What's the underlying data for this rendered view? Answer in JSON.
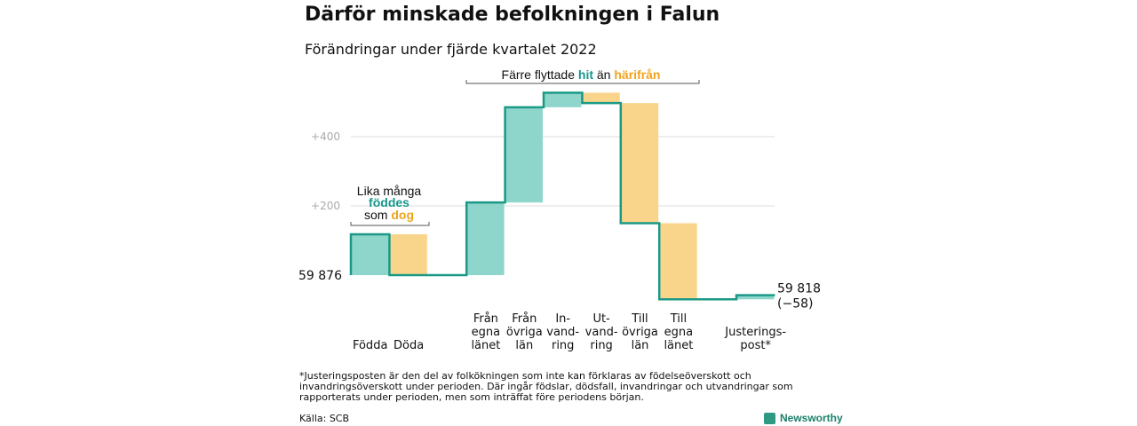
{
  "title": "Därför minskade befolkningen i Falun",
  "subtitle": "Förändringar under fjärde kvartalet 2022",
  "colors": {
    "positive": "#8ed5cb",
    "negative": "#f9d48b",
    "line": "#1a9a86",
    "hit": "#17968a",
    "harifran": "#f0a41d",
    "grid": "#dddddd",
    "tick": "#aaaaaa"
  },
  "chart_data": {
    "type": "waterfall",
    "start_value": 59876,
    "start_label": "59 876",
    "end_value": 59818,
    "end_label": "59 818",
    "end_change_label": "(−58)",
    "y_ticks": [
      {
        "value": 200,
        "label": "+200"
      },
      {
        "value": 400,
        "label": "+400"
      }
    ],
    "ylim": [
      -80,
      540
    ],
    "steps": [
      {
        "label": [
          "Födda"
        ],
        "change": 118
      },
      {
        "label": [
          "Döda"
        ],
        "change": -118
      },
      {
        "label": [],
        "change": 0
      },
      {
        "label": [
          "Från",
          "egna",
          "länet"
        ],
        "change": 210
      },
      {
        "label": [
          "Från",
          "övriga",
          "län"
        ],
        "change": 275
      },
      {
        "label": [
          "In-",
          "vand-",
          "ring"
        ],
        "change": 42
      },
      {
        "label": [
          "Ut-",
          "vand-",
          "ring"
        ],
        "change": -30
      },
      {
        "label": [
          "Till",
          "övriga",
          "län"
        ],
        "change": -347
      },
      {
        "label": [
          "Till",
          "egna",
          "länet"
        ],
        "change": -220
      },
      {
        "label": [],
        "change": 0
      },
      {
        "label": [
          "Justerings-",
          "post*"
        ],
        "change": 12
      }
    ],
    "annotations": {
      "births": {
        "line1": "Lika många",
        "word_born": "föddes",
        "prefix_died": "som ",
        "word_died": "dog"
      },
      "migration": {
        "prefix": "Färre flyttade ",
        "word_hit": "hit",
        "middle": " än ",
        "word_harifran": "härifrån"
      }
    }
  },
  "footnote": "*Justeringsposten är den del av folkökningen som inte kan förklaras av födelseöverskott och invandringsöverskott under perioden. Där ingår födslar, dödsfall, invandringar och utvandringar som rapporterats under perioden, men som inträffat före periodens början.",
  "source": "Källa: SCB",
  "brand": "Newsworthy"
}
